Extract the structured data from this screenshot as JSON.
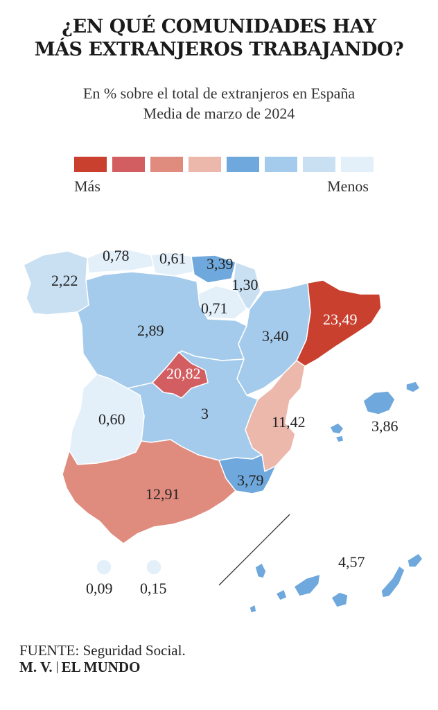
{
  "title": [
    "¿EN QUÉ COMUNIDADES HAY",
    "MÁS EXTRANJEROS TRABAJANDO?"
  ],
  "subtitle": [
    "En % sobre el total de extranjeros en España",
    "Media de marzo de 2024"
  ],
  "legend": {
    "more_label": "Más",
    "less_label": "Menos",
    "colors": [
      "#c9402f",
      "#d35e62",
      "#df8b7e",
      "#ecb8ac",
      "#6fa8dc",
      "#a4cbec",
      "#c9e0f3",
      "#e3eff9"
    ]
  },
  "regions": [
    {
      "name": "Galicia",
      "value": "2,22",
      "color": "#c9e0f3"
    },
    {
      "name": "Asturias",
      "value": "0,78",
      "color": "#e3eff9"
    },
    {
      "name": "Cantabria",
      "value": "0,61",
      "color": "#e3eff9"
    },
    {
      "name": "País Vasco",
      "value": "3,39",
      "color": "#6fa8dc"
    },
    {
      "name": "Navarra",
      "value": "1,30",
      "color": "#c9e0f3"
    },
    {
      "name": "La Rioja",
      "value": "0,71",
      "color": "#e3eff9"
    },
    {
      "name": "Castilla y León",
      "value": "2,89",
      "color": "#a4cbec"
    },
    {
      "name": "Aragón",
      "value": "3,40",
      "color": "#a4cbec"
    },
    {
      "name": "Cataluña",
      "value": "23,49",
      "color": "#c9402f"
    },
    {
      "name": "Madrid",
      "value": "20,82",
      "color": "#d35e62"
    },
    {
      "name": "Castilla-La Mancha",
      "value": "3",
      "color": "#a4cbec"
    },
    {
      "name": "Extremadura",
      "value": "0,60",
      "color": "#e3eff9"
    },
    {
      "name": "Comunidad Valenciana",
      "value": "11,42",
      "color": "#ecb8ac"
    },
    {
      "name": "Islas Baleares",
      "value": "3,86",
      "color": "#6fa8dc"
    },
    {
      "name": "Murcia",
      "value": "3,79",
      "color": "#6fa8dc"
    },
    {
      "name": "Andalucía",
      "value": "12,91",
      "color": "#df8b7e"
    },
    {
      "name": "Ceuta",
      "value": "0,09",
      "color": "#e3eff9"
    },
    {
      "name": "Melilla",
      "value": "0,15",
      "color": "#e3eff9"
    },
    {
      "name": "Canarias",
      "value": "4,57",
      "color": "#6fa8dc"
    }
  ],
  "footer": {
    "source_label": "FUENTE:",
    "source": "Seguridad Social.",
    "credit_author": "M. V.",
    "credit_outlet": "EL MUNDO"
  }
}
